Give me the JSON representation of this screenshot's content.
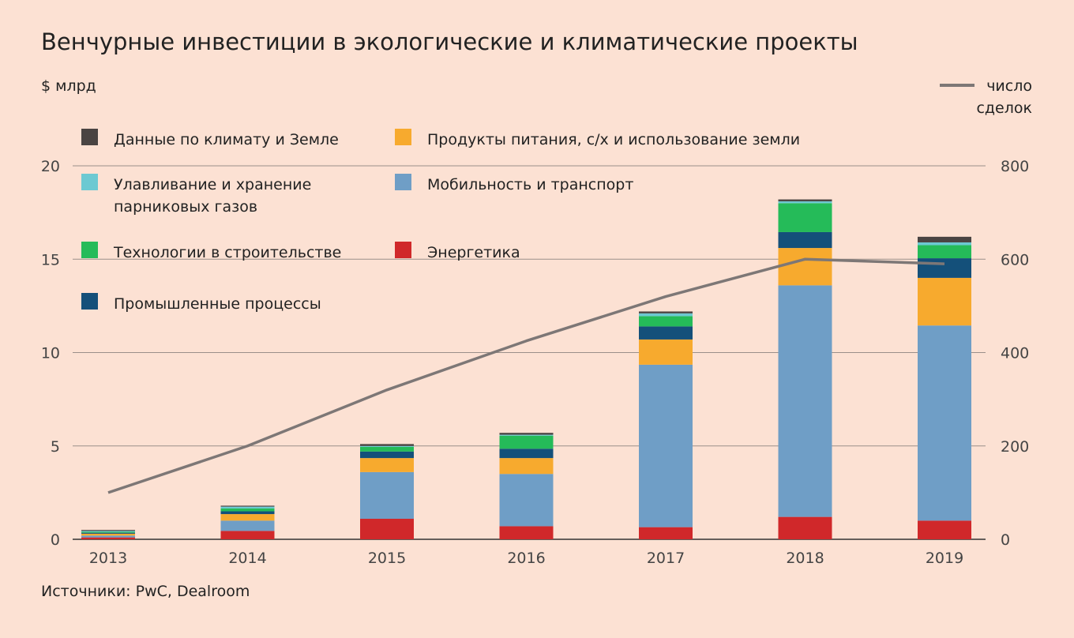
{
  "chart_data": {
    "type": "bar",
    "title": "Венчурные инвестиции в экологические и климатические проекты",
    "left_unit": "$ млрд",
    "right_unit_lines": [
      "число",
      "сделок"
    ],
    "line_legend_label": "число сделок",
    "source": "Источники: PwC, Dealroom",
    "categories": [
      "2013",
      "2014",
      "2015",
      "2016",
      "2017",
      "2018",
      "2019"
    ],
    "ylim": [
      0,
      20
    ],
    "yticks": [
      "0",
      "5",
      "10",
      "15",
      "20"
    ],
    "y2lim": [
      0,
      800
    ],
    "y2ticks": [
      "0",
      "200",
      "400",
      "600",
      "800"
    ],
    "series": [
      {
        "name": "Энергетика",
        "color": "#d0282a",
        "values": [
          0.1,
          0.45,
          1.1,
          0.7,
          0.65,
          1.2,
          1.0
        ]
      },
      {
        "name": "Мобильность и транспорт",
        "color": "#6f9ec6",
        "values": [
          0.1,
          0.55,
          2.5,
          2.8,
          8.7,
          12.4,
          10.45
        ]
      },
      {
        "name": "Продукты питания, с/х и использование земли",
        "color": "#f7aa2e",
        "values": [
          0.1,
          0.35,
          0.75,
          0.85,
          1.35,
          2.0,
          2.55
        ]
      },
      {
        "name": "Промышленные процессы",
        "color": "#14507a",
        "values": [
          0.05,
          0.15,
          0.35,
          0.5,
          0.7,
          0.85,
          1.05
        ]
      },
      {
        "name": "Технологии в строительстве",
        "color": "#25bb59",
        "values": [
          0.05,
          0.15,
          0.25,
          0.7,
          0.55,
          1.55,
          0.7
        ]
      },
      {
        "name": "Улавливание и хранение парниковых газов",
        "color": "#6cc9d2",
        "values": [
          0.05,
          0.1,
          0.05,
          0.05,
          0.15,
          0.1,
          0.15
        ]
      },
      {
        "name": "Данные по климату и Земле",
        "color": "#4a4442",
        "values": [
          0.05,
          0.05,
          0.1,
          0.1,
          0.1,
          0.1,
          0.3
        ]
      }
    ],
    "line": {
      "name": "число сделок",
      "color": "#7d7776",
      "values": [
        100,
        200,
        320,
        425,
        520,
        600,
        590
      ]
    },
    "legend": [
      {
        "name": "Данные по климату и Земле",
        "lines": [
          "Данные по климату и Земле"
        ],
        "color": "#4a4442"
      },
      {
        "name": "Улавливание и хранение парниковых газов",
        "lines": [
          "Улавливание и хранение",
          "парниковых газов"
        ],
        "color": "#6cc9d2"
      },
      {
        "name": "Технологии в строительстве",
        "lines": [
          "Технологии в строительстве"
        ],
        "color": "#25bb59"
      },
      {
        "name": "Промышленные процессы",
        "lines": [
          "Промышленные процессы"
        ],
        "color": "#14507a"
      },
      {
        "name": "Продукты питания, с/х и использование земли",
        "lines": [
          "Продукты питания, с/х и использование земли"
        ],
        "color": "#f7aa2e"
      },
      {
        "name": "Мобильность и транспорт",
        "lines": [
          "Мобильность и транспорт"
        ],
        "color": "#6f9ec6"
      },
      {
        "name": "Энергетика",
        "lines": [
          "Энергетика"
        ],
        "color": "#d0282a"
      }
    ],
    "grid": true,
    "legend_position": "top-left"
  }
}
